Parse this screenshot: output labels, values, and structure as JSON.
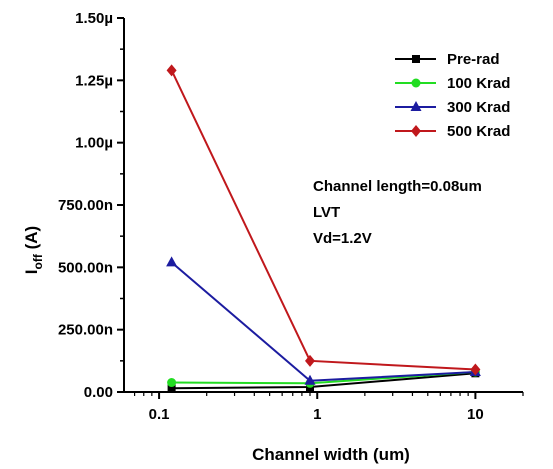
{
  "chart_data": {
    "type": "line",
    "xscale": "log",
    "x": [
      0.12,
      0.9,
      10
    ],
    "xlim": [
      0.06,
      20
    ],
    "xticks": [
      0.1,
      1,
      10
    ],
    "xtick_labels": [
      "0.1",
      "1",
      "10"
    ],
    "ylim": [
      0,
      1.5e-06
    ],
    "yticks": [
      0,
      2.5e-07,
      5e-07,
      7.5e-07,
      1e-06,
      1.25e-06,
      1.5e-06
    ],
    "ytick_labels": [
      "0.00",
      "250.00n",
      "500.00n",
      "750.00n",
      "1.00µ",
      "1.25µ",
      "1.50µ"
    ],
    "xlabel": "Channel width (um)",
    "ylabel": {
      "main": "I",
      "sub": "off",
      "rest": " (A)"
    },
    "grid": false,
    "legend_position": "top-right",
    "series": [
      {
        "name": "Pre-rad",
        "color": "#000000",
        "marker": "square",
        "values": [
          1.5e-08,
          2e-08,
          7.5e-08
        ]
      },
      {
        "name": "100 Krad",
        "color": "#22dd22",
        "marker": "circle",
        "values": [
          3.8e-08,
          3.5e-08,
          8e-08
        ]
      },
      {
        "name": "300 Krad",
        "color": "#1c1ca0",
        "marker": "triangle",
        "values": [
          5.2e-07,
          4.5e-08,
          8e-08
        ]
      },
      {
        "name": "500 Krad",
        "color": "#c0181c",
        "marker": "diamond",
        "values": [
          1.29e-06,
          1.25e-07,
          9e-08
        ]
      }
    ],
    "annotations": [
      "Channel length=0.08um",
      "LVT",
      "Vd=1.2V"
    ]
  }
}
